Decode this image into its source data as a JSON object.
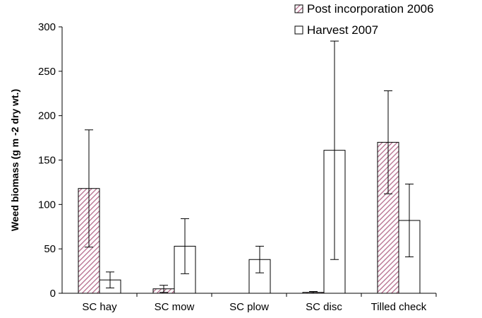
{
  "chart_data": {
    "type": "bar",
    "title": "",
    "xlabel": "",
    "ylabel": "Weed biomass (g m  -2 dry wt.)",
    "ylim": [
      0,
      300
    ],
    "yticks": [
      0,
      50,
      100,
      150,
      200,
      250,
      300
    ],
    "categories": [
      "SC hay",
      "SC mow",
      "SC plow",
      "SC disc",
      "Tilled check"
    ],
    "series": [
      {
        "name": "Post incorporation 2006",
        "values": [
          118,
          5,
          0,
          1,
          170
        ],
        "error": [
          66,
          4,
          0,
          1,
          58
        ],
        "pattern": "diagonal-hatch",
        "color": "#c2819a"
      },
      {
        "name": "Harvest 2007",
        "values": [
          15,
          53,
          38,
          161,
          82
        ],
        "error": [
          9,
          31,
          15,
          123,
          41
        ],
        "pattern": "none",
        "color": "#ffffff"
      }
    ],
    "legend_position": "top-right",
    "grid": false
  }
}
